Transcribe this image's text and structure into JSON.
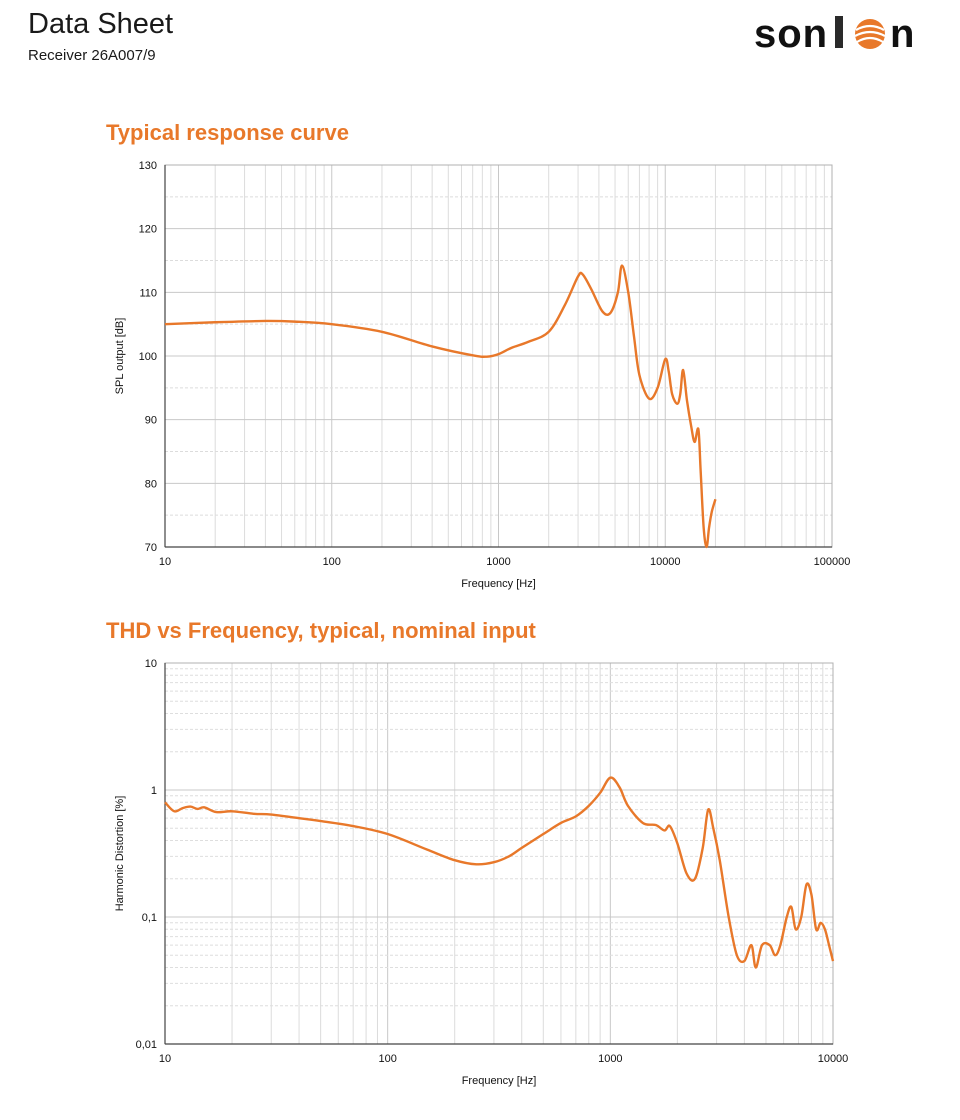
{
  "header": {
    "title": "Data Sheet",
    "subtitle": "Receiver 26A007/9",
    "logo_text": "sonion",
    "accent_color": "#e8782a"
  },
  "chart_data": [
    {
      "type": "line",
      "title": "Typical response curve",
      "xlabel": "Frequency [Hz]",
      "ylabel": "SPL output [dB]",
      "xscale": "log",
      "xlim": [
        10,
        100000
      ],
      "ylim": [
        70,
        130
      ],
      "xticks": [
        10,
        100,
        1000,
        10000,
        100000
      ],
      "xtick_labels": [
        "10",
        "100",
        "1000",
        "10000",
        "100000"
      ],
      "yticks": [
        70,
        80,
        90,
        100,
        110,
        120,
        130
      ],
      "ytick_labels": [
        "70",
        "80",
        "90",
        "100",
        "110",
        "120",
        "130"
      ],
      "grid": true,
      "color": "#e8782a",
      "series": [
        {
          "x": [
            10,
            20,
            40,
            60,
            100,
            200,
            400,
            700,
            850,
            1000,
            1200,
            1500,
            2000,
            2500,
            3000,
            3200,
            3600,
            4200,
            4700,
            5200,
            5500,
            6000,
            6500,
            7000,
            8000,
            9000,
            10000,
            10500,
            11000,
            11800,
            12300,
            12800,
            13500,
            14300,
            15000,
            15800,
            16300,
            17000,
            17700,
            18300,
            19000,
            20000
          ],
          "y": [
            105,
            105.3,
            105.5,
            105.4,
            105,
            103.8,
            101.5,
            100.1,
            99.9,
            100.3,
            101.3,
            102.2,
            103.8,
            108,
            112.5,
            112.8,
            110.5,
            107,
            106.8,
            110,
            114.2,
            110,
            103,
            97,
            93.3,
            95,
            99.5,
            97.5,
            94,
            92.5,
            94,
            97.8,
            93,
            89,
            86.5,
            88.5,
            82,
            73,
            70,
            73,
            75.5,
            77.5
          ]
        }
      ]
    },
    {
      "type": "line",
      "title": "THD vs Frequency, typical, nominal input",
      "xlabel": "Frequency [Hz]",
      "ylabel": "Harmonic Distortion [%]",
      "xscale": "log",
      "yscale": "log",
      "xlim": [
        10,
        10000
      ],
      "ylim": [
        0.01,
        10
      ],
      "xticks": [
        10,
        100,
        1000,
        10000
      ],
      "xtick_labels": [
        "10",
        "100",
        "1000",
        "10000"
      ],
      "yticks": [
        0.01,
        0.1,
        1,
        10
      ],
      "ytick_labels": [
        "0,01",
        "0,1",
        "1",
        "10"
      ],
      "grid": true,
      "color": "#e8782a",
      "series": [
        {
          "x": [
            10,
            11,
            12,
            13,
            14,
            15,
            17,
            20,
            25,
            30,
            40,
            50,
            70,
            100,
            150,
            200,
            250,
            300,
            350,
            400,
            500,
            600,
            700,
            800,
            900,
            1000,
            1100,
            1200,
            1400,
            1600,
            1750,
            1850,
            2000,
            2200,
            2400,
            2600,
            2750,
            2900,
            3100,
            3400,
            3700,
            4000,
            4300,
            4500,
            4800,
            5200,
            5500,
            5800,
            6200,
            6500,
            6800,
            7200,
            7600,
            8000,
            8400,
            8800,
            9200,
            9600,
            10000
          ],
          "y": [
            0.8,
            0.68,
            0.72,
            0.74,
            0.71,
            0.73,
            0.67,
            0.68,
            0.65,
            0.64,
            0.6,
            0.57,
            0.52,
            0.45,
            0.34,
            0.28,
            0.26,
            0.27,
            0.3,
            0.35,
            0.45,
            0.55,
            0.62,
            0.75,
            0.95,
            1.25,
            1.05,
            0.75,
            0.55,
            0.53,
            0.48,
            0.52,
            0.38,
            0.22,
            0.2,
            0.35,
            0.7,
            0.5,
            0.28,
            0.1,
            0.05,
            0.045,
            0.06,
            0.04,
            0.06,
            0.06,
            0.05,
            0.06,
            0.1,
            0.12,
            0.08,
            0.1,
            0.18,
            0.15,
            0.08,
            0.09,
            0.08,
            0.06,
            0.045
          ]
        }
      ]
    }
  ]
}
